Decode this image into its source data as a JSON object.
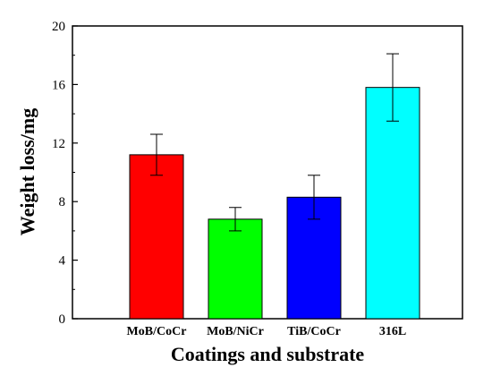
{
  "chart_data": {
    "type": "bar",
    "title": "",
    "xlabel": "Coatings and substrate",
    "ylabel": "Weight loss/mg",
    "ylim": [
      0,
      20
    ],
    "yticks": [
      0,
      4,
      8,
      12,
      16,
      20
    ],
    "ytick_labels": [
      "0",
      "4",
      "8",
      "12",
      "16",
      "20"
    ],
    "grid": false,
    "categories": [
      "MoB/CoCr",
      "MoB/NiCr",
      "TiB/CoCr",
      "316L"
    ],
    "values": [
      11.2,
      6.8,
      8.3,
      15.8
    ],
    "errors": [
      1.4,
      0.8,
      1.5,
      2.3
    ],
    "colors": [
      "#ff0000",
      "#00ff00",
      "#0000ff",
      "#00ffff"
    ]
  }
}
